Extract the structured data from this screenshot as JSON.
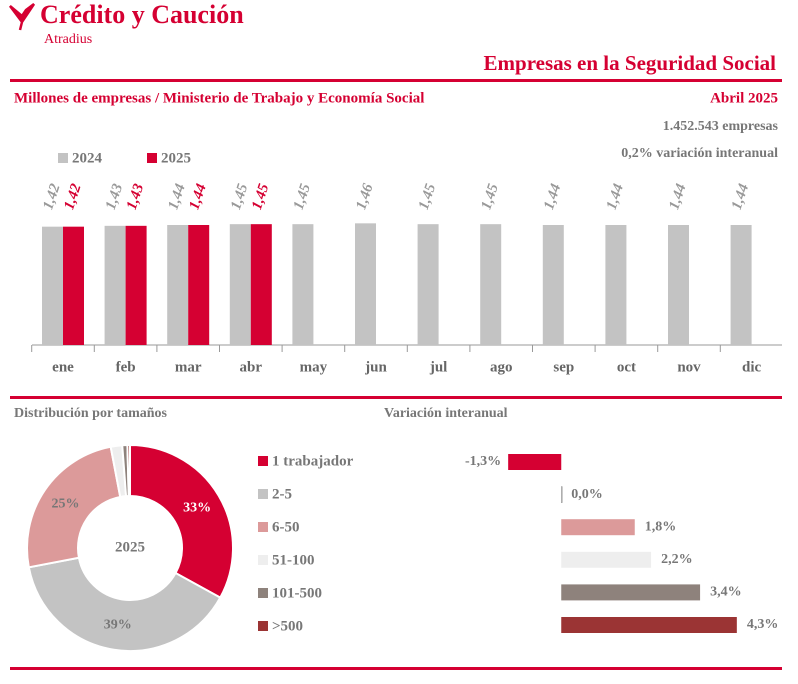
{
  "header": {
    "brand": "Crédito y Caución",
    "sub_brand": "Atradius",
    "title": "Empresas en la Seguridad Social",
    "subtitle": "Millones de empresas / Ministerio de Trabajo y Economía Social",
    "date": "Abril 2025",
    "stats": [
      "1.452.543 empresas",
      "0,2% variación interanual"
    ]
  },
  "chart_data": [
    {
      "type": "bar",
      "categories": [
        "ene",
        "feb",
        "mar",
        "abr",
        "may",
        "jun",
        "jul",
        "ago",
        "sep",
        "oct",
        "nov",
        "dic"
      ],
      "ylim": [
        0,
        1.5
      ],
      "legend": "top-left",
      "series": [
        {
          "name": "2024",
          "color": "#c3c3c3",
          "label_color": "#999999",
          "values": [
            1.42,
            1.43,
            1.44,
            1.45,
            1.45,
            1.46,
            1.45,
            1.45,
            1.44,
            1.44,
            1.44,
            1.44
          ],
          "value_labels": [
            "1,42",
            "1,43",
            "1,44",
            "1,45",
            "1,45",
            "1,46",
            "1,45",
            "1,45",
            "1,44",
            "1,44",
            "1,44",
            "1,44"
          ]
        },
        {
          "name": "2025",
          "color": "#d50032",
          "label_color": "#d50032",
          "values": [
            1.42,
            1.43,
            1.44,
            1.45,
            null,
            null,
            null,
            null,
            null,
            null,
            null,
            null
          ],
          "value_labels": [
            "1,42",
            "1,43",
            "1,44",
            "1,45",
            null,
            null,
            null,
            null,
            null,
            null,
            null,
            null
          ]
        }
      ]
    },
    {
      "type": "donut",
      "title": "Distribución por tamaños",
      "center_label": "2025",
      "categories": [
        "1 trabajador",
        "2-5",
        "6-50",
        "51-100",
        "101-500",
        ">500"
      ],
      "values": [
        33,
        39,
        25,
        1.8,
        0.8,
        0.4
      ],
      "value_labels": [
        "33%",
        "39%",
        "25%",
        null,
        null,
        null
      ],
      "colors": [
        "#d50032",
        "#c3c3c3",
        "#dc9a9a",
        "#eeeeee",
        "#8e827c",
        "#9b3434"
      ]
    },
    {
      "type": "hbar",
      "title": "Variación interanual",
      "xlim": [
        -1.5,
        4.5
      ],
      "values": [
        -1.3,
        0.0,
        1.8,
        2.2,
        3.4,
        4.3
      ],
      "value_labels": [
        "-1,3%",
        "0,0%",
        "1,8%",
        "2,2%",
        "3,4%",
        "4,3%"
      ],
      "colors": [
        "#d50032",
        "#c3c3c3",
        "#dc9a9a",
        "#eeeeee",
        "#8e827c",
        "#9b3434"
      ]
    }
  ]
}
